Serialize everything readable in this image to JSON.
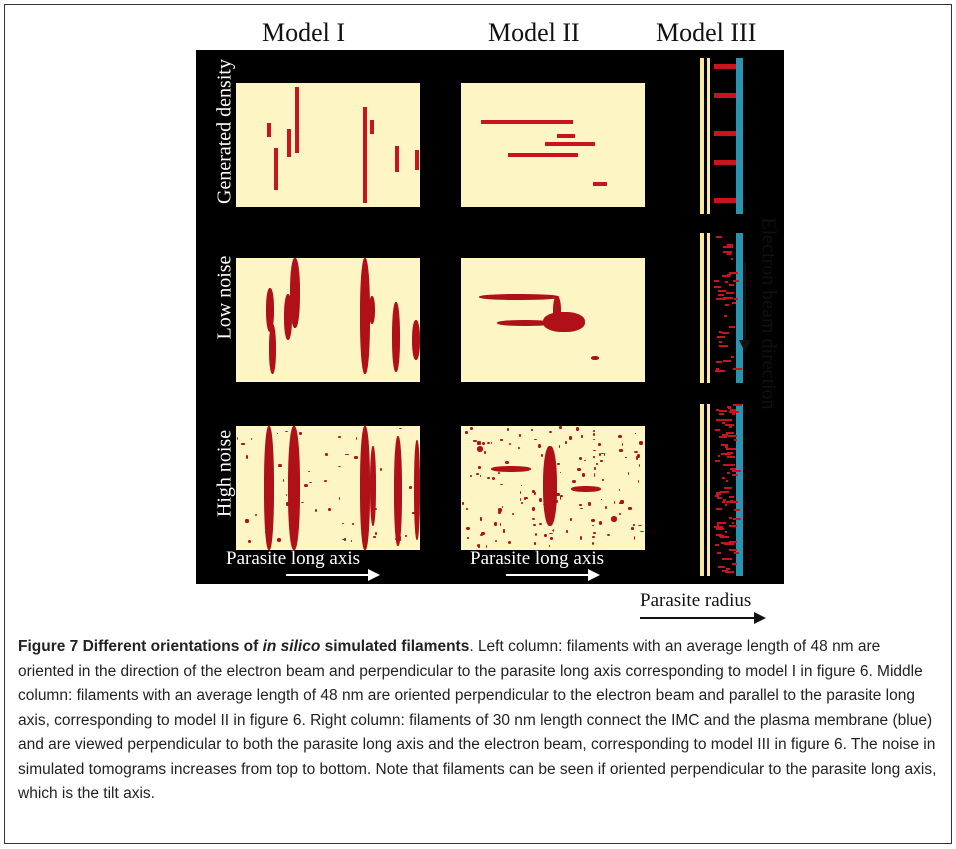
{
  "figure": {
    "columns": [
      "Model I",
      "Model II",
      "Model III"
    ],
    "rows": [
      "Generated density",
      "Low noise",
      "High noise"
    ],
    "axis_labels": {
      "long_axis_1": "Parasite long axis",
      "long_axis_2": "Parasite long axis",
      "beam": "Electron beam direction",
      "radius": "Parasite radius"
    },
    "colors": {
      "background": "#000000",
      "tile": "#fdf5c4",
      "filament": "#c8141e",
      "membrane": "#2a93b0"
    }
  },
  "caption": {
    "label": "Figure 7",
    "title_pre": " Different orientations of ",
    "title_em": "in silico",
    "title_post": " simulated filaments",
    "body": ". Left column: filaments with an average length of 48 nm are oriented in the direction of the electron beam and perpendicular to the parasite long axis corresponding to model I in figure 6. Middle column: filaments with an average length of 48 nm are oriented perpendicular to the electron beam and parallel to the parasite long axis, corresponding to model II in figure 6. Right column: filaments of 30 nm length connect the IMC and the plasma membrane (blue) and are viewed perpendicular to both the parasite long axis and the electron beam, corresponding to model III in figure 6. The noise in simulated tomograms increases from top to bottom. Note that filaments can be seen if oriented perpendicular to the parasite long axis, which is the tilt axis."
  }
}
